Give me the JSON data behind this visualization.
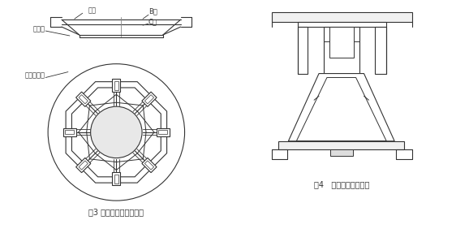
{
  "bg_color": "#ffffff",
  "line_color": "#333333",
  "lw": 0.8,
  "fig_caption1": "图3 灌包架的分料箱部分",
  "fig_caption2": "图4   灌包架制作完成图",
  "label_falan": "法兰",
  "label_fangfalan": "方法兰",
  "label_B": "B面",
  "label_C": "C面",
  "label_8kou": "八个分料口"
}
